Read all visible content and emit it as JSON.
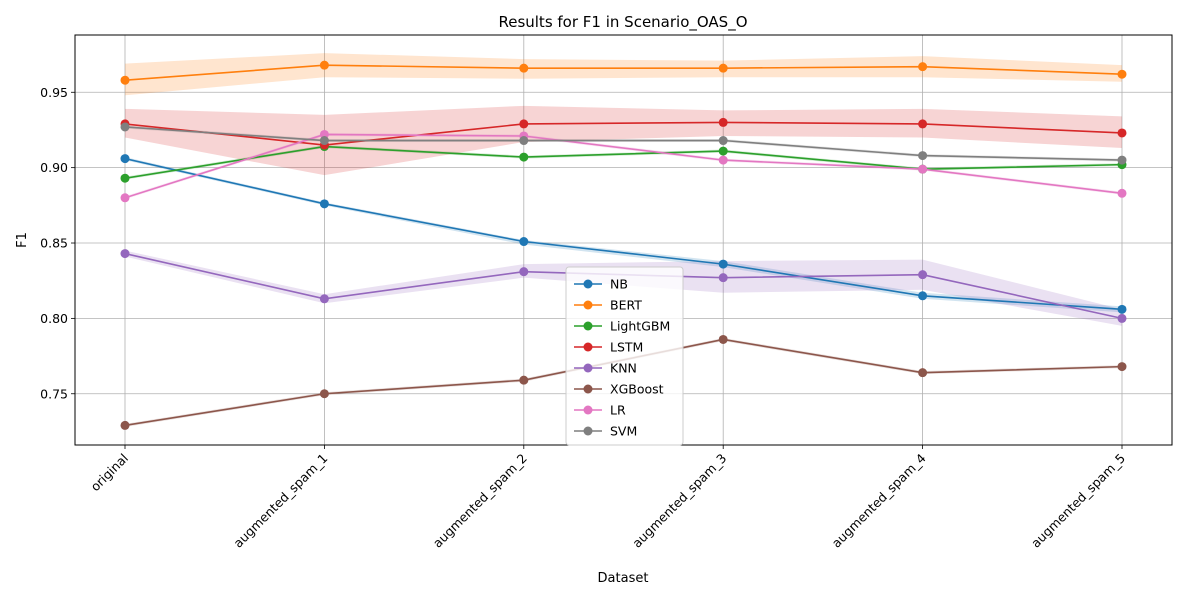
{
  "chart_data": {
    "type": "line",
    "title": "Results for F1 in Scenario_OAS_O",
    "xlabel": "Dataset",
    "ylabel": "F1",
    "categories": [
      "original",
      "augmented_spam_1",
      "augmented_spam_2",
      "augmented_spam_3",
      "augmented_spam_4",
      "augmented_spam_5"
    ],
    "ylim": [
      0.716,
      0.988
    ],
    "yticks": [
      0.75,
      0.8,
      0.85,
      0.9,
      0.95
    ],
    "ytick_labels": [
      "0.75",
      "0.80",
      "0.85",
      "0.90",
      "0.95"
    ],
    "grid": true,
    "legend_position": "center",
    "series": [
      {
        "name": "NB",
        "color": "#1f77b4",
        "values": [
          0.906,
          0.876,
          0.851,
          0.836,
          0.815,
          0.806
        ],
        "lower": [
          0.905,
          0.875,
          0.849,
          0.834,
          0.813,
          0.804
        ],
        "upper": [
          0.907,
          0.877,
          0.852,
          0.838,
          0.817,
          0.808
        ]
      },
      {
        "name": "BERT",
        "color": "#ff7f0e",
        "values": [
          0.958,
          0.968,
          0.966,
          0.966,
          0.967,
          0.962
        ],
        "lower": [
          0.948,
          0.96,
          0.959,
          0.96,
          0.96,
          0.957
        ],
        "upper": [
          0.969,
          0.976,
          0.972,
          0.971,
          0.974,
          0.968
        ]
      },
      {
        "name": "LightGBM",
        "color": "#2ca02c",
        "values": [
          0.893,
          0.914,
          0.907,
          0.911,
          0.899,
          0.902
        ],
        "lower": [
          0.892,
          0.913,
          0.906,
          0.91,
          0.898,
          0.901
        ],
        "upper": [
          0.894,
          0.915,
          0.908,
          0.912,
          0.9,
          0.903
        ]
      },
      {
        "name": "LSTM",
        "color": "#d62728",
        "values": [
          0.929,
          0.915,
          0.929,
          0.93,
          0.929,
          0.923
        ],
        "lower": [
          0.92,
          0.895,
          0.917,
          0.921,
          0.92,
          0.913
        ],
        "upper": [
          0.939,
          0.935,
          0.941,
          0.938,
          0.939,
          0.934
        ]
      },
      {
        "name": "KNN",
        "color": "#9467bd",
        "values": [
          0.843,
          0.813,
          0.831,
          0.827,
          0.829,
          0.8
        ],
        "lower": [
          0.841,
          0.81,
          0.827,
          0.817,
          0.819,
          0.795
        ],
        "upper": [
          0.845,
          0.816,
          0.836,
          0.838,
          0.839,
          0.806
        ]
      },
      {
        "name": "XGBoost",
        "color": "#8c564b",
        "values": [
          0.729,
          0.75,
          0.759,
          0.786,
          0.764,
          0.768
        ],
        "lower": [
          0.728,
          0.749,
          0.758,
          0.785,
          0.763,
          0.767
        ],
        "upper": [
          0.73,
          0.751,
          0.76,
          0.787,
          0.765,
          0.769
        ]
      },
      {
        "name": "LR",
        "color": "#e377c2",
        "values": [
          0.88,
          0.922,
          0.921,
          0.905,
          0.899,
          0.883
        ],
        "lower": [
          0.879,
          0.921,
          0.92,
          0.904,
          0.898,
          0.882
        ],
        "upper": [
          0.881,
          0.923,
          0.922,
          0.906,
          0.9,
          0.884
        ]
      },
      {
        "name": "SVM",
        "color": "#7f7f7f",
        "values": [
          0.927,
          0.918,
          0.918,
          0.918,
          0.908,
          0.905
        ],
        "lower": [
          0.926,
          0.917,
          0.917,
          0.917,
          0.907,
          0.904
        ],
        "upper": [
          0.928,
          0.919,
          0.919,
          0.919,
          0.909,
          0.906
        ]
      }
    ]
  }
}
